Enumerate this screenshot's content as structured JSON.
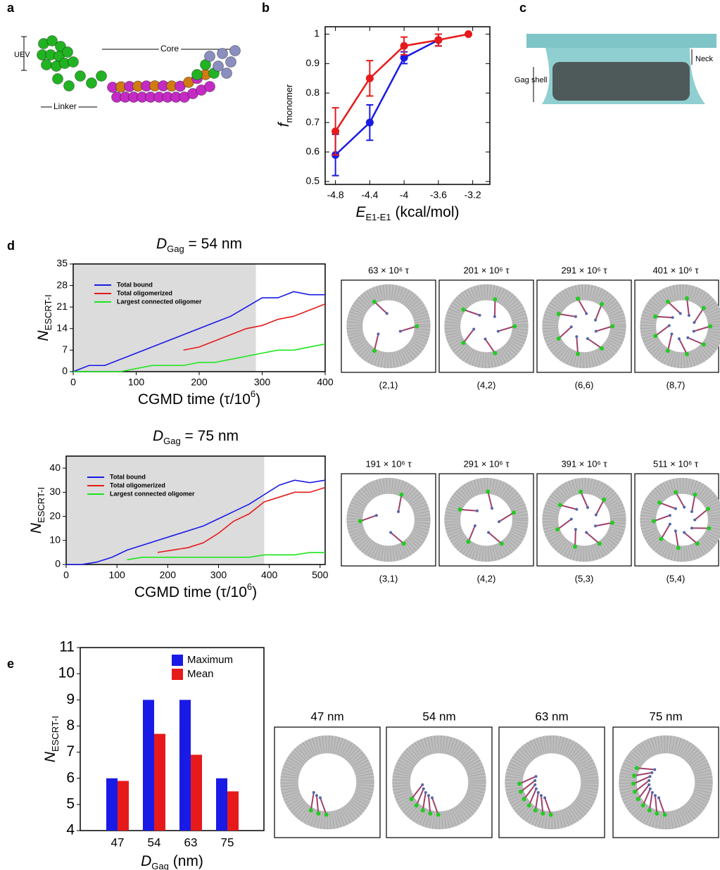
{
  "panel_labels": [
    "a",
    "b",
    "c",
    "d",
    "e"
  ],
  "panel_a": {
    "labels": [
      "UEV",
      "Core",
      "Linker"
    ]
  },
  "panel_c": {
    "labels": [
      "Neck",
      "Gag shell"
    ]
  },
  "chart_data": [
    {
      "type": "line",
      "xlabel": [
        "E",
        "E1-E1",
        " (kcal/mol)"
      ],
      "ylabel": [
        "f",
        "monomer"
      ],
      "xlim": [
        -4.92,
        -3.0
      ],
      "ylim": [
        0.49,
        1.025
      ],
      "xticks": [
        -4.8,
        -4.4,
        -4,
        -3.6,
        -3.2
      ],
      "yticks": [
        0.5,
        0.6,
        0.7,
        0.8,
        0.9,
        1
      ],
      "series": [
        {
          "color": "#1a1ae6",
          "x": [
            -4.8,
            -4.4,
            -4,
            -3.6
          ],
          "values": [
            0.59,
            0.7,
            0.92,
            0.98
          ],
          "errors": [
            0.07,
            0.06,
            0.02,
            0.02
          ]
        },
        {
          "color": "#e61a1a",
          "x": [
            -4.8,
            -4.4,
            -4,
            -3.6,
            -3.25
          ],
          "values": [
            0.67,
            0.85,
            0.96,
            0.98,
            1.0
          ],
          "errors": [
            0.08,
            0.06,
            0.03,
            0.02,
            0
          ]
        }
      ]
    },
    {
      "type": "line",
      "title": [
        "D",
        "Gag",
        " = 54 nm"
      ],
      "xlabel": [
        "CGMD time (τ/10",
        "6",
        ")"
      ],
      "ylabel": [
        "N",
        "ESCRT-I"
      ],
      "xlim": [
        0,
        400
      ],
      "ylim": [
        0,
        35
      ],
      "xticks": [
        0,
        100,
        200,
        300,
        400
      ],
      "yticks": [
        0,
        7,
        14,
        21,
        28,
        35
      ],
      "shaded_range": [
        0,
        290
      ],
      "legend": "upper left",
      "x": [
        0,
        25,
        50,
        75,
        100,
        125,
        150,
        175,
        200,
        225,
        250,
        275,
        300,
        325,
        350,
        375,
        400
      ],
      "series": [
        {
          "name": "Total bound",
          "color": "#1a1ae6",
          "values": [
            0,
            2,
            2,
            4,
            6,
            8,
            10,
            12,
            14,
            16,
            18,
            21,
            24,
            24,
            26,
            25,
            25
          ]
        },
        {
          "name": "Total oligomerized",
          "color": "#e61a1a",
          "values": [
            null,
            null,
            null,
            null,
            null,
            null,
            null,
            7,
            8,
            10,
            12,
            14,
            15,
            17,
            18,
            20,
            22
          ]
        },
        {
          "name": "Largest connected oligomer",
          "color": "#1ae61a",
          "values": [
            0,
            0,
            0,
            0,
            1,
            2,
            2,
            2,
            3,
            3,
            4,
            5,
            6,
            7,
            7,
            8,
            9
          ]
        }
      ]
    },
    {
      "type": "line",
      "title": [
        "D",
        "Gag",
        " = 75 nm"
      ],
      "xlabel": [
        "CGMD time (τ/10",
        "6",
        ")"
      ],
      "ylabel": [
        "N",
        "ESCRT-I"
      ],
      "xlim": [
        0,
        510
      ],
      "ylim": [
        0,
        45
      ],
      "xticks": [
        0,
        100,
        200,
        300,
        400,
        500
      ],
      "yticks": [
        0,
        10,
        20,
        30,
        40
      ],
      "shaded_range": [
        0,
        390
      ],
      "legend": "upper left",
      "x": [
        0,
        30,
        60,
        90,
        120,
        150,
        180,
        210,
        240,
        270,
        300,
        330,
        360,
        390,
        420,
        450,
        480,
        510
      ],
      "series": [
        {
          "name": "Total bound",
          "color": "#1a1ae6",
          "values": [
            0,
            0,
            1,
            3,
            6,
            8,
            10,
            12,
            14,
            16,
            19,
            22,
            25,
            29,
            33,
            35,
            34,
            35
          ]
        },
        {
          "name": "Total oligomerized",
          "color": "#e61a1a",
          "values": [
            null,
            null,
            null,
            null,
            null,
            null,
            5,
            6,
            7,
            9,
            13,
            18,
            21,
            26,
            28,
            30,
            30,
            32
          ]
        },
        {
          "name": "Largest connected oligomer",
          "color": "#1ae61a",
          "values": [
            null,
            null,
            null,
            null,
            2,
            3,
            3,
            3,
            3,
            3,
            3,
            3,
            3,
            4,
            4,
            4,
            5,
            5
          ]
        }
      ]
    },
    {
      "type": "bar",
      "xlabel": [
        "D",
        "Gag",
        " (nm)"
      ],
      "ylabel": [
        "N",
        "ESCRT-I"
      ],
      "categories": [
        "47",
        "54",
        "63",
        "75"
      ],
      "ylim": [
        4,
        11
      ],
      "yticks": [
        4,
        5,
        6,
        7,
        8,
        9,
        10,
        11
      ],
      "legend": "upper right",
      "series": [
        {
          "name": "Maximum",
          "color": "#1a1ae6",
          "values": [
            6,
            9,
            9,
            6
          ]
        },
        {
          "name": "Mean",
          "color": "#e61a1a",
          "values": [
            5.9,
            7.7,
            6.9,
            5.5
          ]
        }
      ]
    }
  ],
  "snapshots": [
    {
      "captions": [
        "63 × 10⁶ τ",
        "201 × 10⁶ τ",
        "291 × 10⁶ τ",
        "401 × 10⁶ τ"
      ],
      "states": [
        "(2,1)",
        "(4,2)",
        "(6,6)",
        "(8,7)"
      ]
    },
    {
      "captions": [
        "191 × 10⁶ τ",
        "291 × 10⁶ τ",
        "391 × 10⁶ τ",
        "511 × 10⁶ τ"
      ],
      "states": [
        "(3,1)",
        "(4,2)",
        "(5,3)",
        "(5,4)"
      ]
    },
    {
      "captions": [
        "47 nm",
        "54 nm",
        "63 nm",
        "75 nm"
      ]
    }
  ]
}
